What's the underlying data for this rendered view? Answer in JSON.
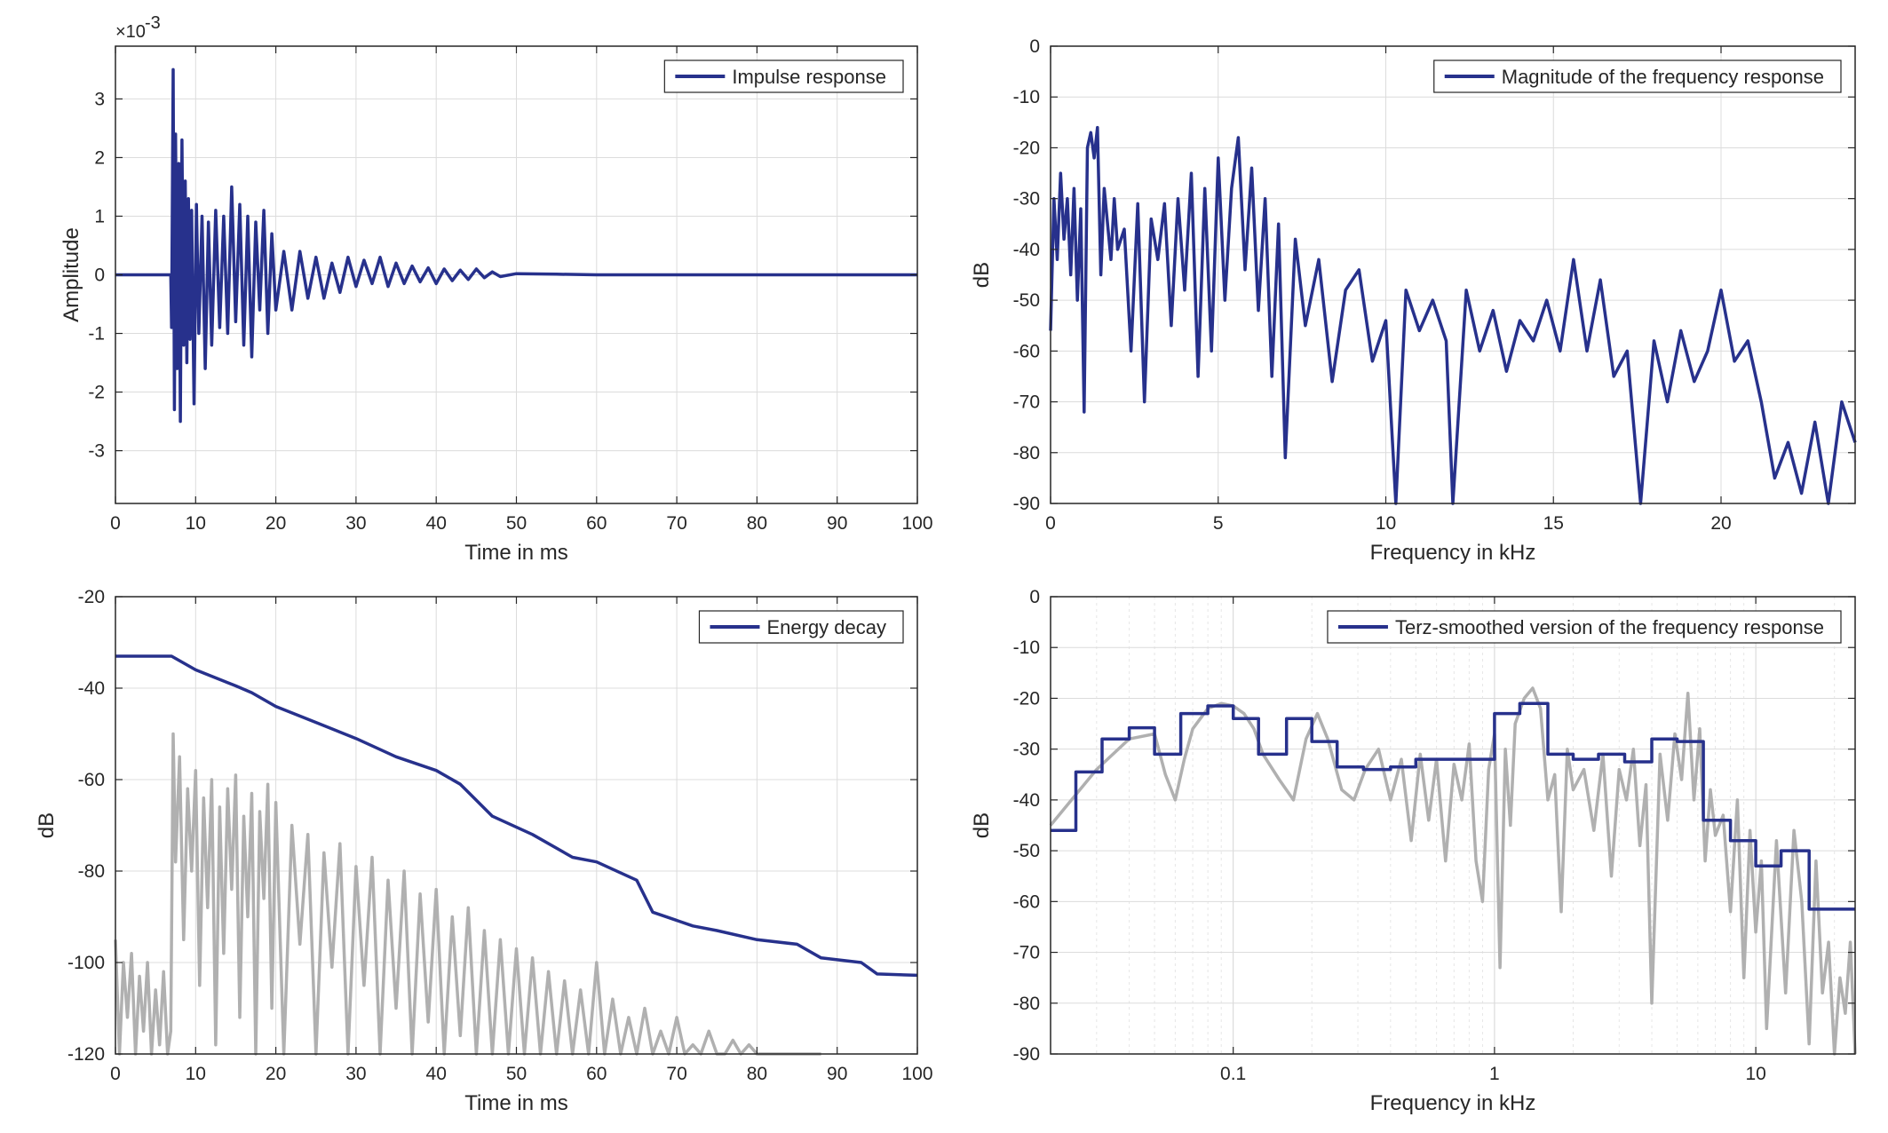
{
  "colors": {
    "series": "#27318c",
    "grey": "#b0b0b0",
    "axis": "#262626",
    "grid": "#dcdcdc",
    "background": "#ffffff"
  },
  "chart_data": [
    {
      "id": "impulse",
      "type": "line",
      "title": "",
      "xlabel": "Time in ms",
      "ylabel": "Amplitude",
      "xscale": "linear",
      "xlim": [
        0,
        100
      ],
      "ylim": [
        -3.9,
        3.9
      ],
      "y_multiplier": "×10",
      "y_exponent": "-3",
      "xticks": [
        0,
        10,
        20,
        30,
        40,
        50,
        60,
        70,
        80,
        90,
        100
      ],
      "xtick_labels": [
        "0",
        "10",
        "20",
        "30",
        "40",
        "50",
        "60",
        "70",
        "80",
        "90",
        "100"
      ],
      "yticks": [
        -3,
        -2,
        -1,
        0,
        1,
        2,
        3
      ],
      "ytick_labels": [
        "-3",
        "-2",
        "-1",
        "0",
        "1",
        "2",
        "3"
      ],
      "grid": true,
      "legend": {
        "placement": "top-right",
        "entries": [
          "Impulse response"
        ]
      },
      "series": [
        {
          "name": "Impulse response",
          "color": "#27318c",
          "x": [
            0,
            6.9,
            7.0,
            7.2,
            7.35,
            7.5,
            7.7,
            7.9,
            8.1,
            8.3,
            8.5,
            8.7,
            8.9,
            9.1,
            9.3,
            9.5,
            9.8,
            10.1,
            10.4,
            10.8,
            11.2,
            11.6,
            12,
            12.5,
            13,
            13.5,
            14,
            14.5,
            15,
            15.5,
            16,
            16.5,
            17,
            17.5,
            18,
            18.5,
            19,
            19.5,
            20,
            21,
            22,
            23,
            24,
            25,
            26,
            27,
            28,
            29,
            30,
            31,
            32,
            33,
            34,
            35,
            36,
            37,
            38,
            39,
            40,
            41,
            42,
            43,
            44,
            45,
            46,
            47,
            48,
            50,
            55,
            60,
            70,
            80,
            90,
            100
          ],
          "y": [
            0,
            0,
            -0.9,
            3.5,
            -2.3,
            2.4,
            -1.6,
            1.9,
            -2.5,
            2.3,
            -1.2,
            1.6,
            -1.5,
            1.3,
            -1.1,
            1.1,
            -2.2,
            1.2,
            -1.0,
            1.0,
            -1.6,
            0.9,
            -1.2,
            1.1,
            -0.9,
            1.0,
            -1.0,
            1.5,
            -0.8,
            1.2,
            -1.2,
            1.0,
            -1.4,
            0.9,
            -0.6,
            1.1,
            -1.0,
            0.7,
            -0.6,
            0.4,
            -0.6,
            0.4,
            -0.4,
            0.3,
            -0.4,
            0.2,
            -0.3,
            0.3,
            -0.2,
            0.25,
            -0.15,
            0.3,
            -0.2,
            0.2,
            -0.15,
            0.15,
            -0.12,
            0.12,
            -0.15,
            0.1,
            -0.1,
            0.08,
            -0.08,
            0.1,
            -0.05,
            0.05,
            -0.03,
            0.02,
            0.01,
            0.0,
            0.0,
            0.0,
            0.0,
            0.0
          ]
        }
      ]
    },
    {
      "id": "magnitude",
      "type": "line",
      "title": "",
      "xlabel": "Frequency in kHz",
      "ylabel": "dB",
      "xscale": "linear",
      "xlim": [
        0,
        24
      ],
      "ylim": [
        -90,
        0
      ],
      "xticks": [
        0,
        5,
        10,
        15,
        20
      ],
      "xtick_labels": [
        "0",
        "5",
        "10",
        "15",
        "20"
      ],
      "yticks": [
        0,
        -10,
        -20,
        -30,
        -40,
        -50,
        -60,
        -70,
        -80,
        -90
      ],
      "ytick_labels": [
        "0",
        "-10",
        "-20",
        "-30",
        "-40",
        "-50",
        "-60",
        "-70",
        "-80",
        "-90"
      ],
      "grid": true,
      "legend": {
        "placement": "top-right",
        "entries": [
          "Magnitude of the frequency response"
        ]
      },
      "series": [
        {
          "name": "Magnitude of the frequency response",
          "color": "#27318c",
          "x": [
            0,
            0.1,
            0.2,
            0.3,
            0.4,
            0.5,
            0.6,
            0.7,
            0.8,
            0.9,
            1.0,
            1.1,
            1.2,
            1.3,
            1.4,
            1.5,
            1.6,
            1.7,
            1.8,
            1.9,
            2.0,
            2.2,
            2.4,
            2.6,
            2.8,
            3.0,
            3.2,
            3.4,
            3.6,
            3.8,
            4.0,
            4.2,
            4.4,
            4.6,
            4.8,
            5.0,
            5.2,
            5.4,
            5.6,
            5.8,
            6.0,
            6.2,
            6.4,
            6.6,
            6.8,
            7.0,
            7.3,
            7.6,
            8.0,
            8.4,
            8.8,
            9.2,
            9.6,
            10.0,
            10.3,
            10.6,
            11.0,
            11.4,
            11.8,
            12.0,
            12.4,
            12.8,
            13.2,
            13.6,
            14.0,
            14.4,
            14.8,
            15.2,
            15.6,
            16.0,
            16.4,
            16.8,
            17.2,
            17.6,
            18.0,
            18.4,
            18.8,
            19.2,
            19.6,
            20.0,
            20.4,
            20.8,
            21.2,
            21.6,
            22.0,
            22.4,
            22.8,
            23.2,
            23.6,
            24.0
          ],
          "y": [
            -56,
            -30,
            -42,
            -25,
            -38,
            -30,
            -45,
            -28,
            -50,
            -32,
            -72,
            -20,
            -17,
            -22,
            -16,
            -45,
            -28,
            -35,
            -42,
            -30,
            -40,
            -36,
            -60,
            -31,
            -70,
            -34,
            -42,
            -31,
            -55,
            -30,
            -48,
            -25,
            -65,
            -28,
            -60,
            -22,
            -50,
            -28,
            -18,
            -44,
            -24,
            -52,
            -30,
            -65,
            -35,
            -81,
            -38,
            -55,
            -42,
            -66,
            -48,
            -44,
            -62,
            -54,
            -90,
            -48,
            -56,
            -50,
            -58,
            -90,
            -48,
            -60,
            -52,
            -64,
            -54,
            -58,
            -50,
            -60,
            -42,
            -60,
            -46,
            -65,
            -60,
            -90,
            -58,
            -70,
            -56,
            -66,
            -60,
            -48,
            -62,
            -58,
            -70,
            -85,
            -78,
            -88,
            -74,
            -90,
            -70,
            -78
          ]
        }
      ]
    },
    {
      "id": "energy",
      "type": "line",
      "title": "",
      "xlabel": "Time in ms",
      "ylabel": "dB",
      "xscale": "linear",
      "xlim": [
        0,
        100
      ],
      "ylim": [
        -120,
        -20
      ],
      "xticks": [
        0,
        10,
        20,
        30,
        40,
        50,
        60,
        70,
        80,
        90,
        100
      ],
      "xtick_labels": [
        "0",
        "10",
        "20",
        "30",
        "40",
        "50",
        "60",
        "70",
        "80",
        "90",
        "100"
      ],
      "yticks": [
        -20,
        -40,
        -60,
        -80,
        -100,
        -120
      ],
      "ytick_labels": [
        "-20",
        "-40",
        "-60",
        "-80",
        "-100",
        "-120"
      ],
      "grid": true,
      "legend": {
        "placement": "top-right",
        "entries": [
          "Energy decay"
        ]
      },
      "series": [
        {
          "name": "Energy decay",
          "color": "#27318c",
          "x": [
            0,
            7,
            10,
            15,
            17,
            20,
            25,
            30,
            35,
            40,
            43,
            47,
            52,
            57,
            60,
            65,
            67,
            72,
            75,
            80,
            85,
            88,
            93,
            95,
            100
          ],
          "y": [
            -33,
            -33,
            -36,
            -39.5,
            -41,
            -44,
            -47.5,
            -51,
            -55,
            -58,
            -61,
            -68,
            -72,
            -77,
            -78,
            -82,
            -89,
            -92,
            -93,
            -95,
            -96,
            -99,
            -100,
            -102.5,
            -102.8
          ]
        },
        {
          "color": "#b0b0b0",
          "x": [
            0,
            0.5,
            1,
            1.5,
            2,
            2.5,
            3,
            3.5,
            4,
            4.5,
            5,
            5.5,
            6,
            6.5,
            6.9,
            7.2,
            7.5,
            8,
            8.5,
            9,
            9.5,
            10,
            10.5,
            11,
            11.5,
            12,
            12.5,
            13,
            13.5,
            14,
            14.5,
            15,
            15.5,
            16,
            16.5,
            17,
            17.5,
            18,
            18.5,
            19,
            19.5,
            20,
            21,
            22,
            23,
            24,
            25,
            26,
            27,
            28,
            29,
            30,
            31,
            32,
            33,
            34,
            35,
            36,
            37,
            38,
            39,
            40,
            41,
            42,
            43,
            44,
            45,
            46,
            47,
            48,
            49,
            50,
            51,
            52,
            53,
            54,
            55,
            56,
            57,
            58,
            59,
            60,
            61,
            62,
            63,
            64,
            65,
            66,
            67,
            68,
            69,
            70,
            71,
            72,
            73,
            74,
            75,
            76,
            77,
            78,
            79,
            80,
            81,
            82,
            83,
            84,
            85,
            86,
            87,
            88
          ],
          "y": [
            -95,
            -120,
            -100,
            -112,
            -98,
            -120,
            -103,
            -115,
            -100,
            -120,
            -106,
            -118,
            -102,
            -120,
            -115,
            -50,
            -78,
            -55,
            -95,
            -62,
            -80,
            -58,
            -105,
            -64,
            -88,
            -60,
            -118,
            -66,
            -98,
            -62,
            -84,
            -59,
            -112,
            -68,
            -90,
            -63,
            -120,
            -67,
            -86,
            -61,
            -110,
            -65,
            -120,
            -70,
            -96,
            -72,
            -120,
            -76,
            -101,
            -74,
            -120,
            -79,
            -105,
            -77,
            -120,
            -82,
            -110,
            -80,
            -120,
            -85,
            -113,
            -84,
            -120,
            -90,
            -116,
            -88,
            -120,
            -93,
            -120,
            -95,
            -120,
            -97,
            -120,
            -99,
            -120,
            -102,
            -120,
            -104,
            -120,
            -106,
            -120,
            -100,
            -120,
            -108,
            -120,
            -112,
            -120,
            -110,
            -120,
            -115,
            -120,
            -112,
            -120,
            -118,
            -120,
            -115,
            -120,
            -120,
            -117,
            -120,
            -118,
            -120,
            -120,
            -120,
            -120,
            -120,
            -120,
            -120,
            -120,
            -120
          ]
        }
      ]
    },
    {
      "id": "terz",
      "type": "line",
      "title": "",
      "xlabel": "Frequency in kHz",
      "ylabel": "dB",
      "xscale": "log",
      "xlim": [
        0.02,
        24
      ],
      "ylim": [
        -90,
        0
      ],
      "xticks": [
        0.1,
        1,
        10
      ],
      "xtick_labels": [
        "0.1",
        "1",
        "10"
      ],
      "yticks": [
        0,
        -10,
        -20,
        -30,
        -40,
        -50,
        -60,
        -70,
        -80,
        -90
      ],
      "ytick_labels": [
        "0",
        "-10",
        "-20",
        "-30",
        "-40",
        "-50",
        "-60",
        "-70",
        "-80",
        "-90"
      ],
      "grid": true,
      "legend": {
        "placement": "top-right",
        "entries": [
          "Terz-smoothed version of the frequency response"
        ]
      },
      "series": [
        {
          "name": "Terz-smoothed version of the frequency response",
          "color": "#27318c",
          "style": "step",
          "x": [
            0.02,
            0.025,
            0.0315,
            0.04,
            0.05,
            0.063,
            0.08,
            0.1,
            0.125,
            0.16,
            0.2,
            0.25,
            0.315,
            0.4,
            0.5,
            0.63,
            0.8,
            1.0,
            1.25,
            1.6,
            2.0,
            2.5,
            3.15,
            4.0,
            5.0,
            6.3,
            8.0,
            10.0,
            12.5,
            16.0,
            20.0,
            24.0
          ],
          "y": [
            -46,
            -34.5,
            -28,
            -25.8,
            -31,
            -23,
            -21.5,
            -24,
            -31,
            -24,
            -28.5,
            -33.5,
            -34,
            -33.5,
            -32,
            -32,
            -32,
            -23,
            -21,
            -31,
            -32,
            -31,
            -32.5,
            -28,
            -28.5,
            -44,
            -48,
            -53,
            -50,
            -61.5,
            -61.5,
            -61.5
          ]
        },
        {
          "color": "#b0b0b0",
          "x": [
            0.02,
            0.03,
            0.04,
            0.05,
            0.055,
            0.06,
            0.065,
            0.07,
            0.08,
            0.09,
            0.1,
            0.11,
            0.12,
            0.13,
            0.15,
            0.17,
            0.19,
            0.21,
            0.23,
            0.26,
            0.29,
            0.32,
            0.36,
            0.4,
            0.44,
            0.48,
            0.52,
            0.56,
            0.6,
            0.65,
            0.7,
            0.75,
            0.8,
            0.85,
            0.9,
            0.95,
            1.0,
            1.05,
            1.1,
            1.15,
            1.2,
            1.3,
            1.4,
            1.5,
            1.6,
            1.7,
            1.8,
            1.9,
            2.0,
            2.2,
            2.4,
            2.6,
            2.8,
            3.0,
            3.2,
            3.4,
            3.6,
            3.8,
            4.0,
            4.3,
            4.6,
            4.9,
            5.2,
            5.5,
            5.8,
            6.1,
            6.4,
            6.7,
            7.0,
            7.5,
            8.0,
            8.5,
            9.0,
            9.5,
            10.0,
            10.5,
            11.0,
            12.0,
            13.0,
            14.0,
            15.0,
            16.0,
            17.0,
            18.0,
            19.0,
            20.0,
            21.0,
            22.0,
            23.0,
            24.0
          ],
          "y": [
            -45,
            -34,
            -28,
            -27,
            -35,
            -40,
            -32,
            -26,
            -22,
            -21,
            -21.5,
            -23,
            -26,
            -31,
            -36,
            -40,
            -28,
            -23,
            -28,
            -38,
            -40,
            -34,
            -30,
            -40,
            -32,
            -48,
            -31,
            -44,
            -32,
            -52,
            -33,
            -40,
            -29,
            -52,
            -60,
            -34,
            -27,
            -73,
            -30,
            -45,
            -25,
            -20,
            -18,
            -22,
            -40,
            -35,
            -62,
            -30,
            -38,
            -34,
            -46,
            -31,
            -55,
            -34,
            -40,
            -30,
            -49,
            -37,
            -80,
            -31,
            -44,
            -27,
            -36,
            -19,
            -40,
            -26,
            -52,
            -38,
            -47,
            -43,
            -62,
            -40,
            -75,
            -46,
            -66,
            -52,
            -85,
            -48,
            -78,
            -46,
            -60,
            -88,
            -52,
            -78,
            -68,
            -90,
            -75,
            -82,
            -68,
            -90
          ]
        }
      ]
    }
  ]
}
